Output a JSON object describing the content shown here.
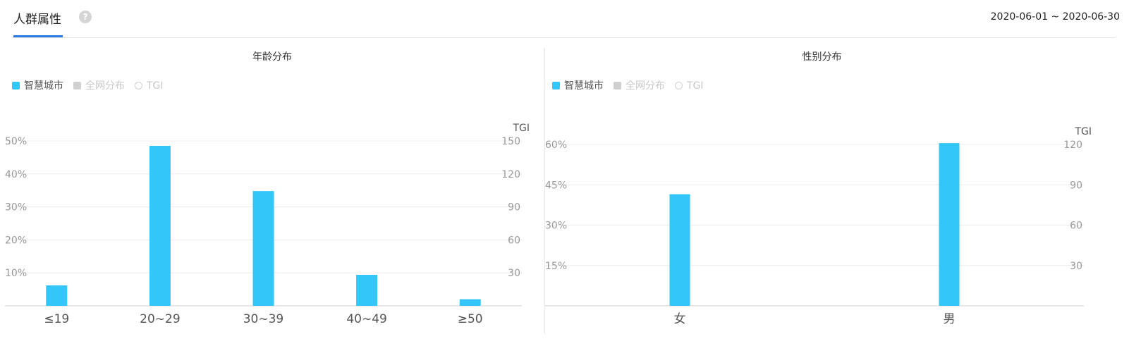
{
  "header": {
    "tab_label": "人群属性",
    "help_icon": "?",
    "date_range": "2020-06-01 ~ 2020-06-30"
  },
  "colors": {
    "series": "#33c6f8",
    "inactive": "#d0d0d0",
    "inactive_text": "#c8c8c8",
    "tab_underline": "#2a7be8"
  },
  "chart_data": [
    {
      "type": "bar",
      "title": "年龄分布",
      "legend": [
        {
          "label": "智慧城市",
          "marker": "square",
          "active": true
        },
        {
          "label": "全网分布",
          "marker": "square",
          "active": false
        },
        {
          "label": "TGI",
          "marker": "circle",
          "active": false
        }
      ],
      "categories": [
        "≤19",
        "20~29",
        "30~39",
        "40~49",
        "≥50"
      ],
      "series": [
        {
          "name": "智慧城市",
          "values": [
            6.2,
            48.5,
            34.8,
            9.4,
            2.0
          ]
        }
      ],
      "y_left": {
        "ticks": [
          "50%",
          "40%",
          "30%",
          "20%",
          "10%"
        ],
        "range": [
          0,
          50
        ]
      },
      "y_right": {
        "label": "TGI",
        "ticks": [
          "150",
          "120",
          "90",
          "60",
          "30"
        ],
        "range": [
          0,
          150
        ]
      },
      "grid": true,
      "legend_position": "top-left"
    },
    {
      "type": "bar",
      "title": "性别分布",
      "legend": [
        {
          "label": "智慧城市",
          "marker": "square",
          "active": true
        },
        {
          "label": "全网分布",
          "marker": "square",
          "active": false
        },
        {
          "label": "TGI",
          "marker": "circle",
          "active": false
        }
      ],
      "categories": [
        "女",
        "男"
      ],
      "series": [
        {
          "name": "智慧城市",
          "values": [
            41.5,
            60.5
          ]
        }
      ],
      "y_left": {
        "ticks": [
          "60%",
          "45%",
          "30%",
          "15%"
        ],
        "range": [
          0,
          60
        ]
      },
      "y_right": {
        "label": "TGI",
        "ticks": [
          "120",
          "90",
          "60",
          "30"
        ],
        "range": [
          0,
          120
        ]
      },
      "grid": true,
      "legend_position": "top-left"
    }
  ]
}
